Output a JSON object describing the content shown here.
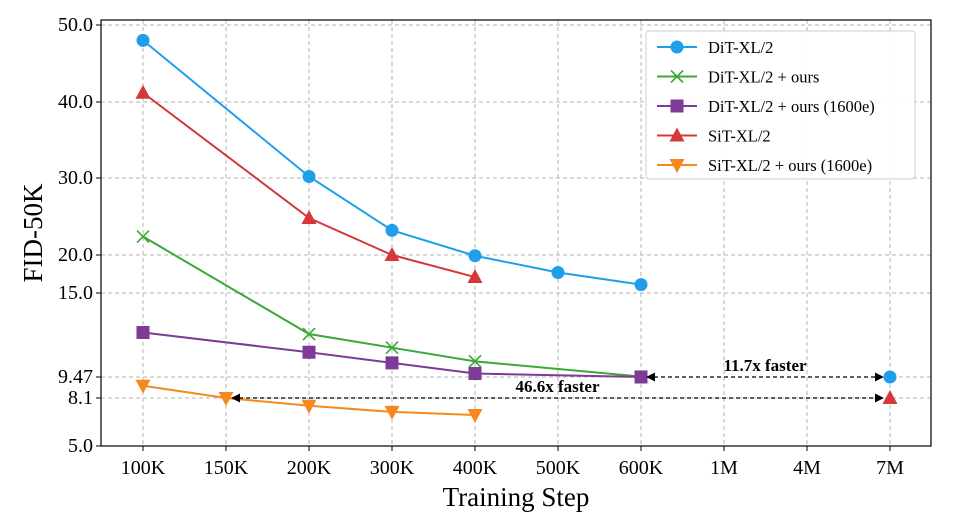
{
  "chart_data": {
    "type": "line",
    "xlabel": "Training Step",
    "ylabel": "FID-50K",
    "categories": [
      "100K",
      "150K",
      "200K",
      "300K",
      "400K",
      "500K",
      "600K",
      "1M",
      "4M",
      "7M"
    ],
    "y_ticks": [
      {
        "label": "5.0",
        "value": 5.0
      },
      {
        "label": "8.1",
        "value": 8.1
      },
      {
        "label": "9.47",
        "value": 9.47
      },
      {
        "label": "15.0",
        "value": 15.0
      },
      {
        "label": "20.0",
        "value": 20.0
      },
      {
        "label": "30.0",
        "value": 30.0
      },
      {
        "label": "40.0",
        "value": 40.0
      },
      {
        "label": "50.0",
        "value": 50.0
      }
    ],
    "ylim": [
      5.0,
      50.0
    ],
    "grid": true,
    "legend_position": "top-right",
    "series": [
      {
        "name": "DiT-XL/2",
        "color": "#1f9fe9",
        "marker": "circle",
        "points": [
          [
            "100K",
            48.0
          ],
          [
            "200K",
            30.2
          ],
          [
            "300K",
            23.2
          ],
          [
            "400K",
            19.9
          ],
          [
            "500K",
            17.7
          ],
          [
            "600K",
            16.1
          ]
        ]
      },
      {
        "name": "DiT-XL/2 + ours",
        "color": "#3aa935",
        "marker": "x",
        "points": [
          [
            "100K",
            22.4
          ],
          [
            "200K",
            12.3
          ],
          [
            "300K",
            11.4
          ],
          [
            "400K",
            10.5
          ],
          [
            "600K",
            9.5
          ]
        ]
      },
      {
        "name": "DiT-XL/2 + ours (1600e)",
        "color": "#7d3a96",
        "marker": "square",
        "points": [
          [
            "100K",
            12.4
          ],
          [
            "200K",
            11.1
          ],
          [
            "300K",
            10.4
          ],
          [
            "400K",
            9.7
          ],
          [
            "600K",
            9.47
          ]
        ]
      },
      {
        "name": "SiT-XL/2",
        "color": "#d43838",
        "marker": "triangle-up",
        "points": [
          [
            "100K",
            41.2
          ],
          [
            "200K",
            24.8
          ],
          [
            "300K",
            20.0
          ],
          [
            "400K",
            17.1
          ]
        ]
      },
      {
        "name": "SiT-XL/2 + ours (1600e)",
        "color": "#f5891d",
        "marker": "triangle-down",
        "points": [
          [
            "100K",
            8.9
          ],
          [
            "150K",
            8.1
          ],
          [
            "200K",
            7.6
          ],
          [
            "300K",
            7.2
          ],
          [
            "400K",
            7.0
          ]
        ]
      }
    ],
    "extra_points": [
      {
        "series": "DiT-XL/2",
        "x": "7M",
        "y": 9.47,
        "color": "#1f9fe9",
        "marker": "circle"
      },
      {
        "series": "SiT-XL/2",
        "x": "7M",
        "y": 8.1,
        "color": "#d43838",
        "marker": "triangle-up"
      }
    ],
    "annotations": [
      {
        "text": "11.7x faster",
        "from_x": "600K",
        "to_x": "7M",
        "y": 9.47
      },
      {
        "text": "46.6x faster",
        "from_x": "150K",
        "to_x": "7M",
        "y": 8.1
      }
    ]
  }
}
